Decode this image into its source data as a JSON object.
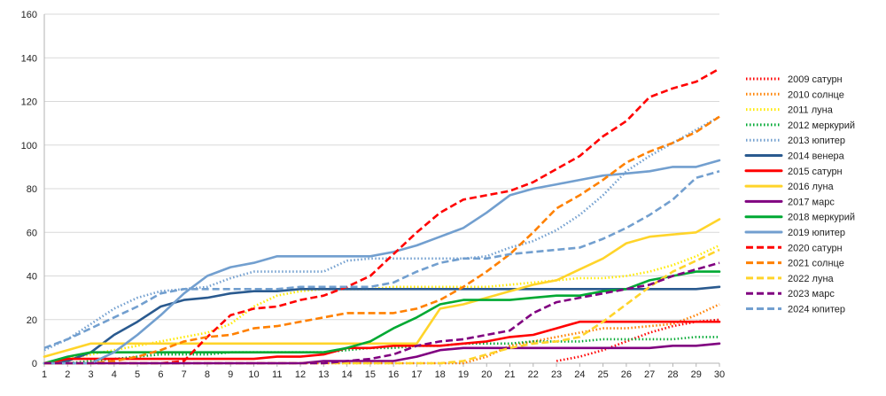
{
  "chart_data": {
    "type": "line",
    "title": "",
    "xlabel": "",
    "ylabel": "",
    "x": [
      1,
      2,
      3,
      4,
      5,
      6,
      7,
      8,
      9,
      10,
      11,
      12,
      13,
      14,
      15,
      16,
      17,
      18,
      19,
      20,
      21,
      22,
      23,
      24,
      25,
      26,
      27,
      28,
      29,
      30
    ],
    "ylim": [
      0,
      160
    ],
    "yticks": [
      0,
      20,
      40,
      60,
      80,
      100,
      120,
      140,
      160
    ],
    "grid": "horizontal",
    "legend": "right",
    "series": [
      {
        "name": "2009 сатурн",
        "color": "#ff0000",
        "dash": "dotted",
        "values": [
          null,
          null,
          null,
          null,
          null,
          null,
          null,
          null,
          null,
          null,
          null,
          null,
          null,
          null,
          null,
          null,
          null,
          null,
          null,
          null,
          null,
          null,
          1,
          3,
          6,
          10,
          14,
          17,
          19,
          20
        ]
      },
      {
        "name": "2010 солнце",
        "color": "#ff8000",
        "dash": "dotted",
        "values": [
          0,
          0,
          0,
          0,
          0,
          0,
          0,
          0,
          0,
          0,
          0,
          0,
          0,
          0,
          0,
          0,
          0,
          0,
          0,
          3,
          8,
          10,
          12,
          14,
          16,
          16,
          17,
          18,
          22,
          27
        ]
      },
      {
        "name": "2011 луна",
        "color": "#ffea00",
        "dash": "dotted",
        "values": [
          0,
          2,
          4,
          6,
          8,
          10,
          12,
          14,
          18,
          26,
          31,
          33,
          34,
          34,
          34,
          35,
          35,
          35,
          35,
          35,
          36,
          37,
          38,
          39,
          39,
          40,
          42,
          45,
          49,
          54
        ]
      },
      {
        "name": "2012 меркурий",
        "color": "#00a933",
        "dash": "dotted",
        "values": [
          0,
          0,
          1,
          2,
          3,
          4,
          4,
          4,
          5,
          5,
          5,
          5,
          5,
          6,
          7,
          7,
          8,
          8,
          9,
          9,
          9,
          10,
          10,
          10,
          11,
          11,
          11,
          11,
          12,
          12
        ]
      },
      {
        "name": "2013 юпитер",
        "color": "#729fcf",
        "dash": "dotted",
        "values": [
          6,
          11,
          18,
          25,
          30,
          33,
          34,
          35,
          39,
          42,
          42,
          42,
          42,
          47,
          48,
          48,
          48,
          48,
          48,
          49,
          53,
          56,
          61,
          68,
          77,
          88,
          95,
          101,
          107,
          113
        ]
      },
      {
        "name": "2014 венера",
        "color": "#2a5a8f",
        "dash": "solid",
        "values": [
          0,
          1,
          5,
          13,
          19,
          26,
          29,
          30,
          32,
          33,
          33,
          34,
          34,
          34,
          34,
          34,
          34,
          34,
          34,
          34,
          34,
          34,
          34,
          34,
          34,
          34,
          34,
          34,
          34,
          35
        ]
      },
      {
        "name": "2015 сатурн",
        "color": "#ff0000",
        "dash": "solid",
        "values": [
          0,
          2,
          2,
          2,
          2,
          2,
          2,
          2,
          2,
          2,
          3,
          3,
          4,
          7,
          7,
          8,
          8,
          8,
          9,
          10,
          12,
          13,
          16,
          19,
          19,
          19,
          19,
          19,
          19,
          19
        ]
      },
      {
        "name": "2016 луна",
        "color": "#ffd42a",
        "dash": "solid",
        "values": [
          3,
          6,
          9,
          9,
          9,
          9,
          9,
          9,
          9,
          9,
          9,
          9,
          9,
          9,
          9,
          9,
          9,
          25,
          27,
          30,
          33,
          36,
          38,
          43,
          48,
          55,
          58,
          59,
          60,
          66
        ]
      },
      {
        "name": "2017 марс",
        "color": "#800080",
        "dash": "solid",
        "values": [
          0,
          0,
          0,
          0,
          0,
          0,
          0,
          0,
          0,
          0,
          0,
          0,
          1,
          1,
          1,
          1,
          3,
          6,
          7,
          7,
          7,
          7,
          7,
          7,
          7,
          7,
          7,
          8,
          8,
          9
        ]
      },
      {
        "name": "2018 меркурий",
        "color": "#00a933",
        "dash": "solid",
        "values": [
          0,
          3,
          5,
          5,
          5,
          5,
          5,
          5,
          5,
          5,
          5,
          5,
          5,
          7,
          10,
          16,
          21,
          27,
          29,
          29,
          29,
          30,
          31,
          31,
          33,
          34,
          38,
          40,
          42,
          42
        ]
      },
      {
        "name": "2019 юпитер",
        "color": "#729fcf",
        "dash": "solid",
        "values": [
          0,
          0,
          0,
          5,
          13,
          22,
          32,
          40,
          44,
          46,
          49,
          49,
          49,
          49,
          49,
          51,
          54,
          58,
          62,
          69,
          77,
          80,
          82,
          84,
          86,
          87,
          88,
          90,
          90,
          93
        ]
      },
      {
        "name": "2020 сатурн",
        "color": "#ff0000",
        "dash": "dashed",
        "values": [
          0,
          0,
          0,
          0,
          0,
          0,
          1,
          12,
          22,
          25,
          26,
          29,
          31,
          35,
          40,
          50,
          60,
          69,
          75,
          77,
          79,
          83,
          89,
          95,
          104,
          111,
          122,
          126,
          129,
          135
        ]
      },
      {
        "name": "2021 солнце",
        "color": "#ff8000",
        "dash": "dashed",
        "values": [
          0,
          0,
          0,
          1,
          3,
          6,
          10,
          12,
          13,
          16,
          17,
          19,
          21,
          23,
          23,
          23,
          25,
          29,
          35,
          42,
          50,
          60,
          71,
          77,
          84,
          92,
          97,
          101,
          106,
          113
        ]
      },
      {
        "name": "2022 луна",
        "color": "#ffd42a",
        "dash": "dashed",
        "values": [
          0,
          0,
          0,
          0,
          0,
          0,
          0,
          0,
          0,
          0,
          0,
          0,
          0,
          0,
          0,
          0,
          0,
          0,
          1,
          4,
          7,
          9,
          10,
          12,
          19,
          27,
          35,
          42,
          47,
          52
        ]
      },
      {
        "name": "2023 марс",
        "color": "#800080",
        "dash": "dashed",
        "values": [
          0,
          0,
          0,
          0,
          0,
          0,
          0,
          0,
          0,
          0,
          0,
          0,
          0,
          1,
          2,
          4,
          8,
          10,
          11,
          13,
          15,
          23,
          28,
          30,
          32,
          34,
          36,
          40,
          43,
          46
        ]
      },
      {
        "name": "2024 юпитер",
        "color": "#729fcf",
        "dash": "dashed",
        "values": [
          7,
          11,
          16,
          21,
          26,
          32,
          34,
          34,
          34,
          34,
          34,
          35,
          35,
          35,
          35,
          37,
          42,
          46,
          48,
          48,
          50,
          51,
          52,
          53,
          57,
          62,
          68,
          75,
          85,
          88
        ]
      }
    ]
  }
}
